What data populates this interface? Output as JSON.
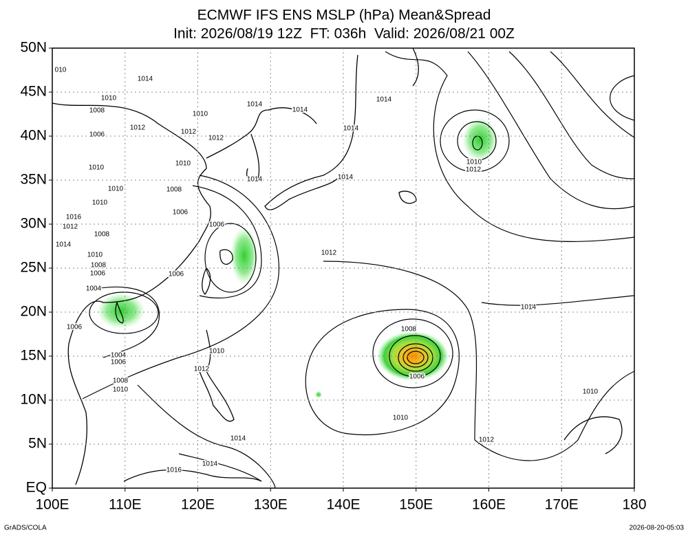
{
  "title": "ECMWF IFS ENS MSLP (hPa) Mean&Spread",
  "subtitle": "Init: 2026/08/19 12Z  FT: 036h  Valid: 2026/08/21 00Z",
  "lon_ticks": [
    {
      "value": 100,
      "label": "100E"
    },
    {
      "value": 110,
      "label": "110E"
    },
    {
      "value": 120,
      "label": "120E"
    },
    {
      "value": 130,
      "label": "130E"
    },
    {
      "value": 140,
      "label": "140E"
    },
    {
      "value": 150,
      "label": "150E"
    },
    {
      "value": 160,
      "label": "160E"
    },
    {
      "value": 170,
      "label": "170E"
    },
    180
  ],
  "lat_ticks": [
    {
      "value": 0,
      "label": "EQ"
    },
    {
      "value": 5,
      "label": "5N"
    },
    {
      "value": 10,
      "label": "10N"
    },
    {
      "value": 15,
      "label": "15N"
    },
    {
      "value": 20,
      "label": "20N"
    },
    {
      "value": 25,
      "label": "25N"
    },
    {
      "value": 30,
      "label": "30N"
    },
    {
      "value": 35,
      "label": "35N"
    },
    {
      "value": 40,
      "label": "40N"
    },
    {
      "value": 45,
      "label": "45N"
    },
    {
      "value": 50,
      "label": "50N"
    }
  ],
  "contour_labels": [
    "010",
    "1014",
    "1010",
    "1008",
    "1012",
    "1006",
    "1010",
    "1014",
    "1014",
    "1014",
    "1012",
    "1012",
    "1014",
    "1010",
    "1014",
    "1014",
    "1010",
    "1012",
    "1010",
    "1010",
    "1010",
    "1008",
    "1016",
    "1012",
    "1006",
    "1008",
    "1006",
    "1014",
    "1010",
    "1008",
    "1006",
    "1006",
    "1012",
    "1004",
    "1014",
    "1006",
    "1008",
    "1004",
    "1006",
    "1010",
    "1012",
    "1006",
    "1008",
    "1010",
    "1010",
    "1010",
    "1012",
    "1014",
    "1014",
    "1016"
  ],
  "footer_left": "GrADS/COLA",
  "footer_right": "2026-08-20-05:03"
}
